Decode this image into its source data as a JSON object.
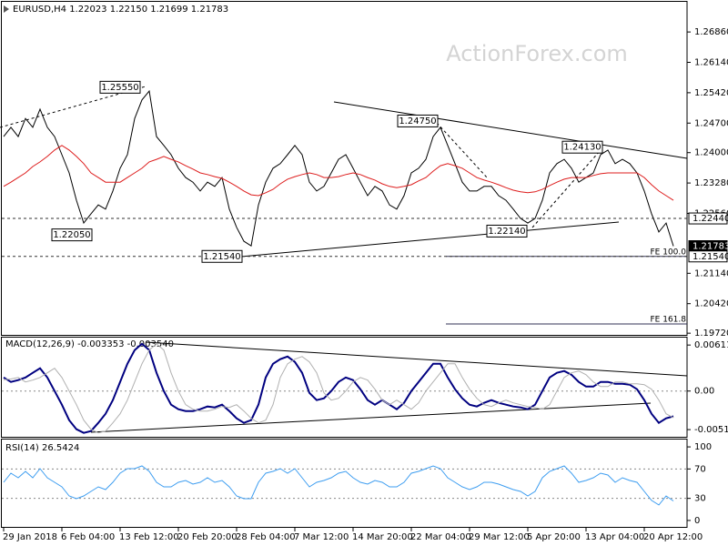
{
  "watermark": "ActionForex.com",
  "chart_data": [
    {
      "type": "line",
      "title": "EURUSD,H4 1.22023 1.22150 1.21699 1.21783",
      "ylim": [
        1.1968,
        1.2751
      ],
      "yticks": [
        {
          "value": 1.2686,
          "label": "1.26860"
        },
        {
          "value": 1.2614,
          "label": "1.26140"
        },
        {
          "value": 1.2542,
          "label": "1.25420"
        },
        {
          "value": 1.247,
          "label": "1.24700"
        },
        {
          "value": 1.24,
          "label": "1.24000"
        },
        {
          "value": 1.2328,
          "label": "1.23280"
        },
        {
          "value": 1.2256,
          "label": "1.22560"
        },
        {
          "value": 1.2114,
          "label": "1.21140"
        },
        {
          "value": 1.2042,
          "label": "1.20420"
        },
        {
          "value": 1.1972,
          "label": "1.19720"
        }
      ],
      "series": [
        {
          "color": "#000000",
          "values": [
            1.2438,
            1.246,
            1.2438,
            1.2481,
            1.246,
            1.2503,
            1.246,
            1.2438,
            1.2395,
            1.2352,
            1.2287,
            1.2233,
            1.2255,
            1.2276,
            1.2266,
            1.2309,
            1.2363,
            1.2395,
            1.2481,
            1.2525,
            1.2546,
            1.2438,
            1.2417,
            1.2395,
            1.2363,
            1.2341,
            1.233,
            1.2309,
            1.233,
            1.232,
            1.2341,
            1.2266,
            1.2223,
            1.219,
            1.2179,
            1.2276,
            1.233,
            1.2363,
            1.2374,
            1.2395,
            1.2417,
            1.2395,
            1.233,
            1.2309,
            1.232,
            1.2352,
            1.2384,
            1.2395,
            1.2363,
            1.233,
            1.2298,
            1.232,
            1.2309,
            1.2276,
            1.2266,
            1.2298,
            1.2352,
            1.2363,
            1.2384,
            1.2438,
            1.246,
            1.2417,
            1.2374,
            1.233,
            1.2309,
            1.2309,
            1.232,
            1.232,
            1.2298,
            1.2287,
            1.2266,
            1.2244,
            1.2233,
            1.2244,
            1.2287,
            1.2352,
            1.2374,
            1.2384,
            1.2363,
            1.233,
            1.2341,
            1.2352,
            1.2395,
            1.2406,
            1.2374,
            1.2384,
            1.2374,
            1.2352,
            1.2309,
            1.2255,
            1.2212,
            1.2233,
            1.21783
          ]
        },
        {
          "color": "#dd1c1c",
          "values": [
            1.232,
            1.233,
            1.2341,
            1.2352,
            1.2367,
            1.2378,
            1.2391,
            1.2406,
            1.2417,
            1.2406,
            1.2391,
            1.2374,
            1.2352,
            1.2341,
            1.233,
            1.233,
            1.233,
            1.2341,
            1.2352,
            1.2363,
            1.2378,
            1.2384,
            1.2391,
            1.2384,
            1.2378,
            1.2369,
            1.2361,
            1.2352,
            1.2348,
            1.2343,
            1.2339,
            1.233,
            1.232,
            1.2309,
            1.23,
            1.2298,
            1.2305,
            1.2313,
            1.2326,
            1.2337,
            1.2343,
            1.2348,
            1.2352,
            1.2348,
            1.2341,
            1.2341,
            1.2343,
            1.2348,
            1.2352,
            1.2348,
            1.2341,
            1.2335,
            1.2326,
            1.232,
            1.2317,
            1.232,
            1.2324,
            1.2333,
            1.2341,
            1.2356,
            1.2369,
            1.2374,
            1.2369,
            1.2363,
            1.2352,
            1.2341,
            1.2335,
            1.233,
            1.2324,
            1.2317,
            1.2311,
            1.2307,
            1.2305,
            1.2307,
            1.2313,
            1.2322,
            1.233,
            1.2337,
            1.2341,
            1.2341,
            1.2341,
            1.2346,
            1.235,
            1.2352,
            1.2352,
            1.2352,
            1.2352,
            1.2352,
            1.2341,
            1.2324,
            1.2309,
            1.2298,
            1.2287
          ]
        }
      ],
      "price_labels": [
        {
          "value": 1.2244,
          "label": "1.22440"
        },
        {
          "value": 1.21783,
          "label": "1.21783"
        },
        {
          "value": 1.2154,
          "label": "1.21540"
        }
      ],
      "fib_levels": [
        {
          "value": 1.2154,
          "label": "FE 100.0"
        },
        {
          "value": 1.1994,
          "label": "FE 161.8"
        }
      ],
      "annotations": [
        {
          "value": 1.2555,
          "label": "1.25550"
        },
        {
          "value": 1.2475,
          "label": "1.24750"
        },
        {
          "value": 1.2413,
          "label": "1.24130"
        },
        {
          "value": 1.2205,
          "label": "1.22050"
        },
        {
          "value": 1.2154,
          "label": "1.21540"
        },
        {
          "value": 1.2214,
          "label": "1.22140"
        }
      ]
    },
    {
      "type": "line",
      "title": "MACD(12,26,9) -0.003353 -0.003540",
      "ylim": [
        -0.0062,
        0.0071
      ],
      "yticks": [
        0.006113,
        {
          "value": 0,
          "label": "0.00"
        },
        -0.005124
      ],
      "levels": [
        0
      ],
      "series": [
        {
          "color": "#000080",
          "values": [
            0.00181,
            0.00121,
            0.00145,
            0.00181,
            0.00242,
            0.00302,
            0.00181,
            0,
            -0.00181,
            -0.00387,
            -0.00507,
            -0.00556,
            -0.00532,
            -0.00423,
            -0.00302,
            -0.00121,
            0.00121,
            0.00362,
            0.00544,
            0.00628,
            0.00544,
            0.00242,
            0,
            -0.00181,
            -0.00242,
            -0.00266,
            -0.00266,
            -0.00242,
            -0.00205,
            -0.00217,
            -0.00181,
            -0.00266,
            -0.00362,
            -0.00423,
            -0.00387,
            -0.00181,
            0.00181,
            0.00362,
            0.00423,
            0.00459,
            0.00387,
            0.00242,
            -0.00024,
            -0.00121,
            -0.00097,
            0,
            0.00121,
            0.00181,
            0.00145,
            0.00024,
            -0.00121,
            -0.00181,
            -0.00121,
            -0.00181,
            -0.00242,
            -0.00157,
            0,
            0.00121,
            0.00242,
            0.00362,
            0.00362,
            0.00181,
            0.00024,
            -0.00097,
            -0.00181,
            -0.00205,
            -0.00157,
            -0.00121,
            -0.00157,
            -0.00181,
            -0.00205,
            -0.00217,
            -0.00242,
            -0.00181,
            0,
            0.00181,
            0.00242,
            0.00266,
            0.00217,
            0.00121,
            0.0006,
            0.0006,
            0.00121,
            0.00121,
            0.00097,
            0.00097,
            0.00085,
            0.00024,
            -0.00121,
            -0.00302,
            -0.00423,
            -0.00362,
            -0.003353
          ]
        },
        {
          "color": "#b0b0b0",
          "values": [
            0.0015,
            0.0016,
            0.00181,
            0.00121,
            0.00145,
            0.00181,
            0.00242,
            0.00302,
            0.00181,
            0,
            -0.00181,
            -0.00387,
            -0.00507,
            -0.00556,
            -0.00532,
            -0.00423,
            -0.00302,
            -0.00121,
            0.00121,
            0.00362,
            0.00544,
            0.00628,
            0.00544,
            0.00242,
            0,
            -0.00181,
            -0.00242,
            -0.00266,
            -0.00266,
            -0.00242,
            -0.00205,
            -0.00217,
            -0.00181,
            -0.00266,
            -0.00362,
            -0.00423,
            -0.00387,
            -0.00181,
            0.00181,
            0.00362,
            0.00423,
            0.00459,
            0.00387,
            0.00242,
            -0.00024,
            -0.00121,
            -0.00097,
            0,
            0.00121,
            0.00181,
            0.00145,
            0.00024,
            -0.00121,
            -0.00181,
            -0.00121,
            -0.00181,
            -0.00242,
            -0.00157,
            0,
            0.00121,
            0.00242,
            0.00362,
            0.00362,
            0.00181,
            0.00024,
            -0.00097,
            -0.00181,
            -0.00205,
            -0.00157,
            -0.00121,
            -0.00157,
            -0.00181,
            -0.00205,
            -0.00217,
            -0.00242,
            -0.00181,
            0,
            0.00181,
            0.00242,
            0.00266,
            0.00217,
            0.00121,
            0.0006,
            0.0006,
            0.00121,
            0.00121,
            0.00097,
            0.00097,
            0.00085,
            0.00024,
            -0.00121,
            -0.00302,
            -0.00354
          ]
        }
      ]
    },
    {
      "type": "line",
      "title": "RSI(14) 26.5424",
      "ylim": [
        -10,
        110
      ],
      "yticks": [
        100,
        70,
        30,
        0
      ],
      "levels": [
        30,
        70
      ],
      "categories": [
        "29 Jan 2018",
        null,
        null,
        null,
        null,
        null,
        null,
        null,
        "6 Feb 04:00",
        null,
        null,
        null,
        null,
        null,
        null,
        null,
        "13 Feb 12:00",
        null,
        null,
        null,
        null,
        null,
        null,
        null,
        "20 Feb 20:00",
        null,
        null,
        null,
        null,
        null,
        null,
        null,
        "28 Feb 04:00",
        null,
        null,
        null,
        null,
        null,
        null,
        null,
        "7 Mar 12:00",
        null,
        null,
        null,
        null,
        null,
        null,
        null,
        "14 Mar 20:00",
        null,
        null,
        null,
        null,
        null,
        null,
        null,
        "22 Mar 04:00",
        null,
        null,
        null,
        null,
        null,
        null,
        null,
        "29 Mar 12:00",
        null,
        null,
        null,
        null,
        null,
        null,
        null,
        "5 Apr 20:00",
        null,
        null,
        null,
        null,
        null,
        null,
        null,
        "13 Apr 04:00",
        null,
        null,
        null,
        null,
        null,
        null,
        null,
        "20 Apr 12:00",
        null,
        null,
        null,
        null
      ],
      "series": [
        {
          "color": "#3d9df0",
          "values": [
            51.9,
            64.2,
            58.0,
            66.7,
            58.0,
            70.4,
            58.0,
            51.9,
            45.7,
            33.3,
            29.6,
            33.3,
            39.5,
            45.7,
            42.0,
            51.9,
            64.2,
            70.4,
            70.4,
            74.1,
            66.7,
            51.9,
            45.7,
            45.7,
            51.9,
            54.3,
            49.4,
            51.9,
            58.0,
            51.9,
            54.3,
            45.7,
            33.3,
            29.6,
            29.6,
            51.9,
            64.2,
            66.7,
            70.4,
            64.2,
            70.4,
            58.0,
            45.7,
            51.9,
            54.3,
            58.0,
            64.2,
            66.7,
            58.0,
            51.9,
            49.4,
            54.3,
            51.9,
            45.7,
            45.7,
            51.9,
            64.2,
            66.7,
            70.4,
            74.1,
            70.4,
            58.0,
            51.9,
            45.7,
            42.0,
            45.7,
            51.9,
            51.9,
            49.4,
            45.7,
            42.0,
            39.5,
            33.3,
            39.5,
            58.0,
            66.7,
            70.4,
            74.1,
            64.2,
            51.9,
            54.3,
            58.0,
            64.2,
            61.7,
            51.9,
            58.0,
            54.3,
            51.9,
            39.5,
            27.2,
            21.0,
            33.3,
            26.5424
          ]
        }
      ]
    }
  ]
}
